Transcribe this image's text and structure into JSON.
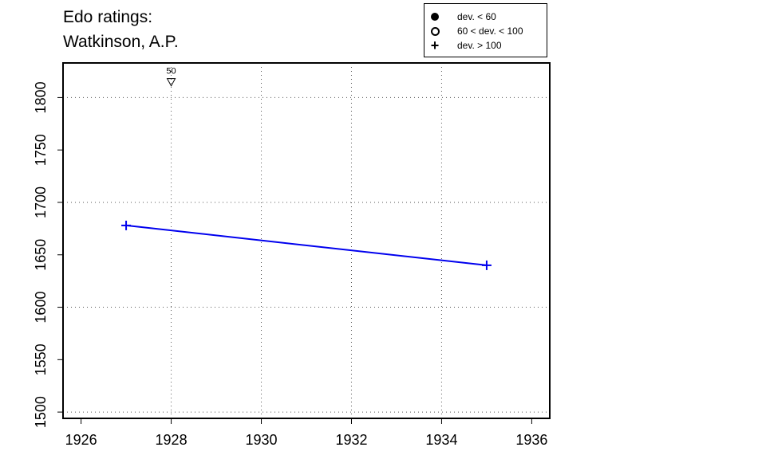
{
  "title": {
    "line1": "Edo ratings:",
    "line2": "Watkinson, A.P."
  },
  "legend": {
    "items": [
      {
        "symbol": "filled-circle",
        "label": "dev. < 60"
      },
      {
        "symbol": "open-circle",
        "label": "60 < dev. < 100"
      },
      {
        "symbol": "plus",
        "label": "dev. > 100"
      }
    ]
  },
  "colors": {
    "series": "#0000ee",
    "axis": "#000000",
    "grid": "#555555"
  },
  "chart_data": {
    "type": "line",
    "title": "Edo ratings: Watkinson, A.P.",
    "xlabel": "",
    "ylabel": "",
    "xlim": [
      1925.6,
      1936.4
    ],
    "ylim": [
      1494,
      1833
    ],
    "x_ticks": [
      1926,
      1928,
      1930,
      1932,
      1934,
      1936
    ],
    "y_ticks": [
      1500,
      1550,
      1600,
      1650,
      1700,
      1750,
      1800
    ],
    "grid": true,
    "legend_position": "top-right",
    "series": [
      {
        "marker": "plus",
        "x": [
          1927,
          1935
        ],
        "y": [
          1678,
          1640
        ]
      }
    ],
    "annotations": [
      {
        "x": 1928,
        "y": 1815,
        "text": "50",
        "marker": "open-triangle-down"
      }
    ]
  }
}
